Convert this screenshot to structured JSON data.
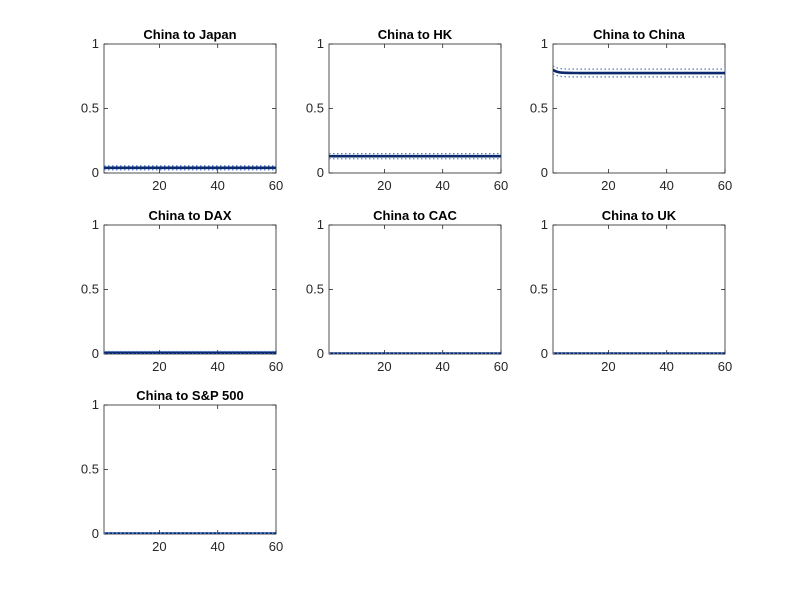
{
  "chart_data": [
    {
      "type": "line",
      "title": "China to Japan",
      "xlim": [
        1,
        60
      ],
      "ylim": [
        0,
        1
      ],
      "xticks": [
        20,
        40,
        60
      ],
      "yticks": [
        0,
        0.5,
        1
      ],
      "series": [
        {
          "role": "estimate",
          "start": 0.04,
          "end": 0.04,
          "color": "#0c2a6b"
        },
        {
          "role": "upper-band",
          "start": 0.055,
          "end": 0.055,
          "color": "#4a7bc8"
        },
        {
          "role": "lower-band",
          "start": 0.025,
          "end": 0.025,
          "color": "#4a7bc8"
        }
      ]
    },
    {
      "type": "line",
      "title": "China to HK",
      "xlim": [
        1,
        60
      ],
      "ylim": [
        0,
        1
      ],
      "xticks": [
        20,
        40,
        60
      ],
      "yticks": [
        0,
        0.5,
        1
      ],
      "series": [
        {
          "role": "estimate",
          "start": 0.13,
          "end": 0.13,
          "color": "#0c2a6b"
        },
        {
          "role": "upper-band",
          "start": 0.15,
          "end": 0.15,
          "color": "#4a7bc8"
        },
        {
          "role": "lower-band",
          "start": 0.11,
          "end": 0.11,
          "color": "#4a7bc8"
        }
      ]
    },
    {
      "type": "line",
      "title": "China to China",
      "xlim": [
        1,
        60
      ],
      "ylim": [
        0,
        1
      ],
      "xticks": [
        20,
        40,
        60
      ],
      "yticks": [
        0,
        0.5,
        1
      ],
      "series": [
        {
          "role": "estimate",
          "start": 0.8,
          "end": 0.775,
          "color": "#0c2a6b"
        },
        {
          "role": "upper-band",
          "start": 0.83,
          "end": 0.805,
          "color": "#4a7bc8"
        },
        {
          "role": "lower-band",
          "start": 0.77,
          "end": 0.745,
          "color": "#4a7bc8"
        }
      ]
    },
    {
      "type": "line",
      "title": "China to DAX",
      "xlim": [
        1,
        60
      ],
      "ylim": [
        0,
        1
      ],
      "xticks": [
        20,
        40,
        60
      ],
      "yticks": [
        0,
        0.5,
        1
      ],
      "series": [
        {
          "role": "estimate",
          "start": 0.01,
          "end": 0.01,
          "color": "#0c2a6b"
        },
        {
          "role": "upper-band",
          "start": 0.02,
          "end": 0.02,
          "color": "#4a7bc8"
        },
        {
          "role": "lower-band",
          "start": 0.0,
          "end": 0.0,
          "color": "#4a7bc8"
        }
      ]
    },
    {
      "type": "line",
      "title": "China to CAC",
      "xlim": [
        1,
        60
      ],
      "ylim": [
        0,
        1
      ],
      "xticks": [
        20,
        40,
        60
      ],
      "yticks": [
        0,
        0.5,
        1
      ],
      "series": [
        {
          "role": "estimate",
          "start": 0.003,
          "end": 0.003,
          "color": "#0c2a6b"
        },
        {
          "role": "upper-band",
          "start": 0.008,
          "end": 0.008,
          "color": "#4a7bc8"
        },
        {
          "role": "lower-band",
          "start": 0.0,
          "end": 0.0,
          "color": "#4a7bc8"
        }
      ]
    },
    {
      "type": "line",
      "title": "China to UK",
      "xlim": [
        1,
        60
      ],
      "ylim": [
        0,
        1
      ],
      "xticks": [
        20,
        40,
        60
      ],
      "yticks": [
        0,
        0.5,
        1
      ],
      "series": [
        {
          "role": "estimate",
          "start": 0.003,
          "end": 0.003,
          "color": "#0c2a6b"
        },
        {
          "role": "upper-band",
          "start": 0.008,
          "end": 0.008,
          "color": "#4a7bc8"
        },
        {
          "role": "lower-band",
          "start": 0.0,
          "end": 0.0,
          "color": "#4a7bc8"
        }
      ]
    },
    {
      "type": "line",
      "title": "China to S&P 500",
      "xlim": [
        1,
        60
      ],
      "ylim": [
        0,
        1
      ],
      "xticks": [
        20,
        40,
        60
      ],
      "yticks": [
        0,
        0.5,
        1
      ],
      "series": [
        {
          "role": "estimate",
          "start": 0.003,
          "end": 0.003,
          "color": "#0c2a6b"
        },
        {
          "role": "upper-band",
          "start": 0.008,
          "end": 0.008,
          "color": "#4a7bc8"
        },
        {
          "role": "lower-band",
          "start": 0.0,
          "end": 0.0,
          "color": "#4a7bc8"
        }
      ]
    }
  ]
}
